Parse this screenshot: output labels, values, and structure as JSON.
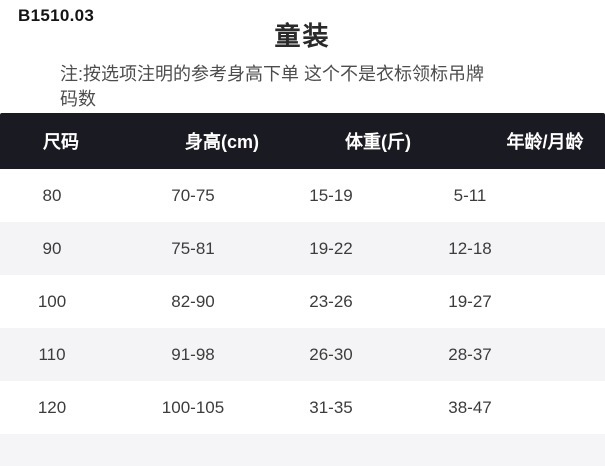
{
  "page": {
    "product_code": "B1510.03",
    "title": "童装",
    "note_line1": "注:按选项注明的参考身高下单 这个不是衣标领标吊牌",
    "note_line2": "码数"
  },
  "size_table": {
    "columns": [
      "尺码",
      "身高(cm)",
      "体重(斤)",
      "年龄/月龄"
    ],
    "rows": [
      [
        "80",
        "70-75",
        "15-19",
        "5-11"
      ],
      [
        "90",
        "75-81",
        "19-22",
        "12-18"
      ],
      [
        "100",
        "82-90",
        "23-26",
        "19-27"
      ],
      [
        "110",
        "91-98",
        "26-30",
        "28-37"
      ],
      [
        "120",
        "100-105",
        "31-35",
        "38-47"
      ]
    ]
  },
  "colors": {
    "header_bg": "#1a1a22",
    "header_text": "#ffffff",
    "row_alt_bg": "#f4f4f6",
    "bottom_band_bg": "#f5f5f7",
    "body_text": "#3c3c3c"
  }
}
